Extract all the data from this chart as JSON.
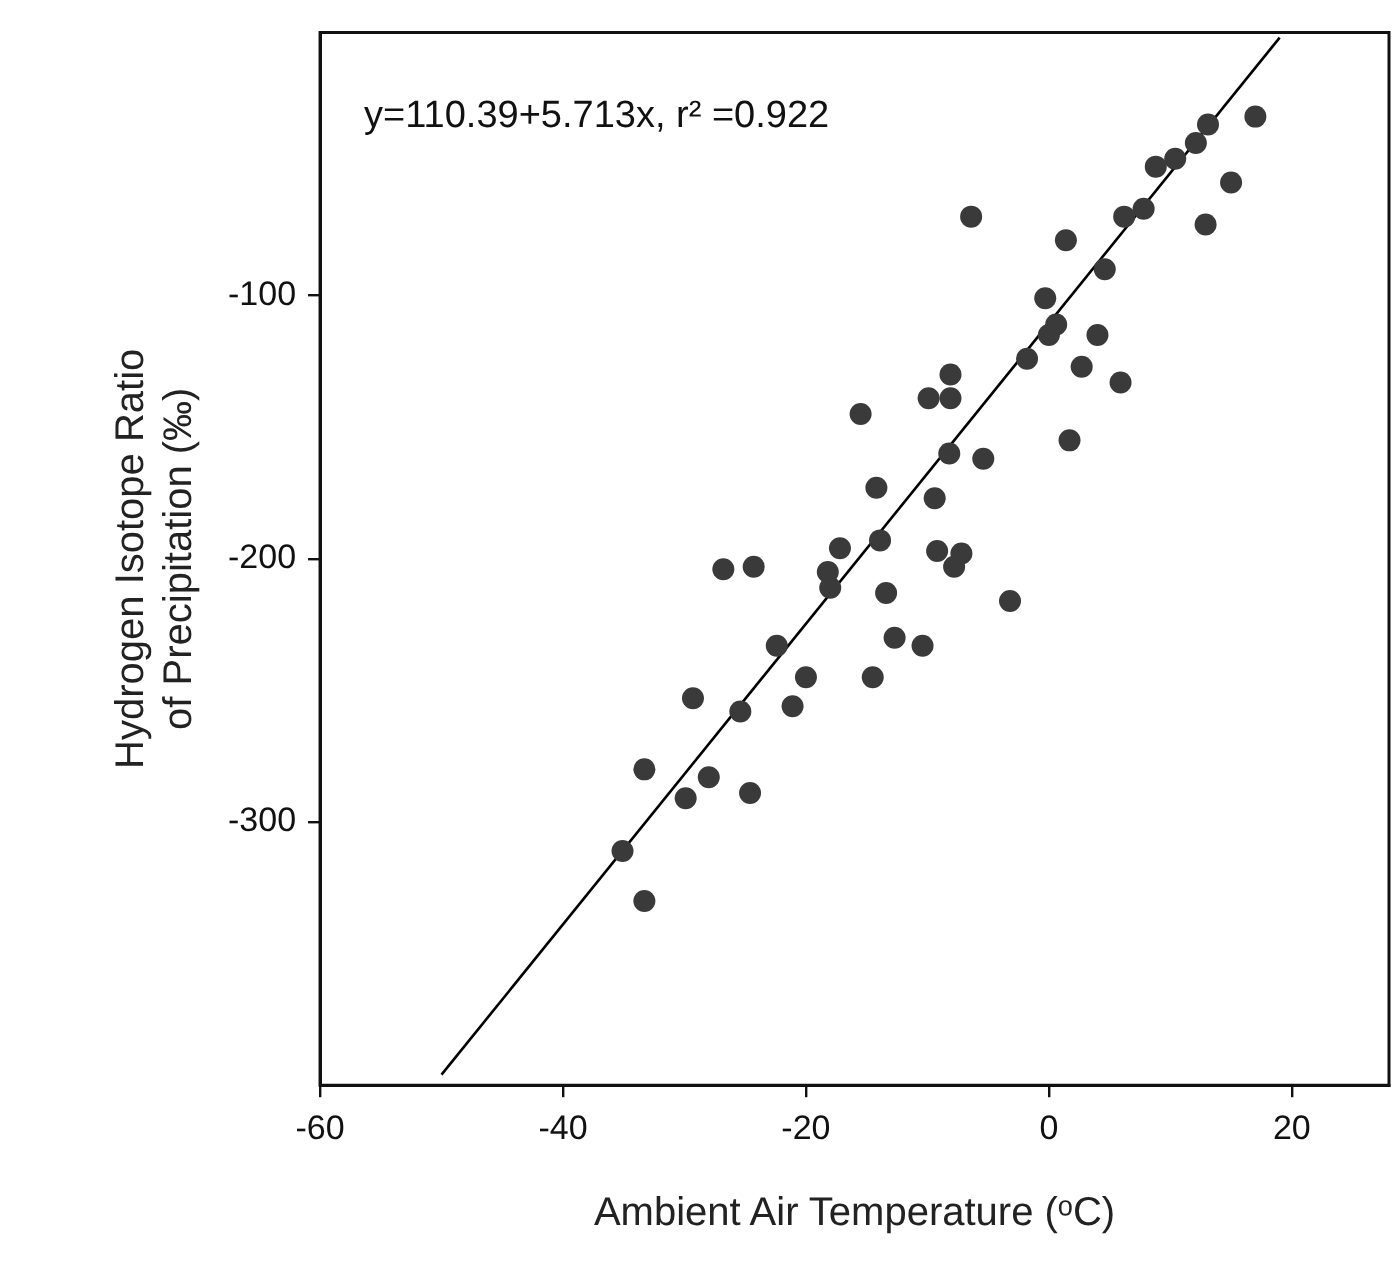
{
  "chart_data": {
    "type": "scatter",
    "xlabel": "Ambient Air Temperature (ᵒC)",
    "ylabel": "Hydrogen Isotope Ratio\nof Precipitation (‰)",
    "annotations": [
      "y=110.39+5.713x, r² =0.922"
    ],
    "xlim": [
      -60,
      28
    ],
    "ylim": [
      -400,
      0
    ],
    "xticks": [
      -60,
      -40,
      -20,
      0,
      20
    ],
    "yticks": [
      -300,
      -200,
      -100
    ],
    "grid": false,
    "legend": false,
    "marker": "circle",
    "series": [
      {
        "color": "#3a3a3a",
        "x": [
          17.0,
          13.1,
          12.1,
          10.4,
          8.8,
          15.0,
          7.8,
          6.2,
          12.9,
          -6.4,
          1.4,
          4.6,
          -0.3,
          0.6,
          0,
          4.0,
          -1.8,
          2.7,
          5.9,
          -8.1,
          -9.9,
          -8.1,
          -15.5,
          1.7,
          -8.2,
          -5.4,
          -14.2,
          -9.4,
          -17.2,
          -13.9,
          -26.8,
          -24.3,
          -18.2,
          -18.0,
          -9.2,
          -7.2,
          -7.8,
          -3.2,
          -13.4,
          -22.4,
          -12.7,
          -10.4,
          -20.0,
          -14.5,
          -29.3,
          -25.4,
          -21.1,
          -33.3,
          -28.0,
          -29.9,
          -24.6,
          -35.1,
          -33.3
        ],
        "values": [
          -32,
          -35,
          -42,
          -48,
          -51,
          -57,
          -67,
          -70,
          -73,
          -70,
          -79,
          -90,
          -101,
          -111,
          -115,
          -115,
          -124,
          -127,
          -133,
          -130,
          -139,
          -139,
          -145,
          -155,
          -160,
          -162,
          -173,
          -177,
          -196,
          -193,
          -204,
          -203,
          -205,
          -211,
          -197,
          -198,
          -203,
          -216,
          -213,
          -233,
          -230,
          -233,
          -245,
          -245,
          -253,
          -258,
          -256,
          -280,
          -283,
          -291,
          -289,
          -311,
          -330
        ]
      },
      {
        "type": "line",
        "color": "#000000",
        "marker": "none",
        "x": [
          -50,
          19
        ],
        "values": [
          -396,
          -2
        ]
      }
    ]
  }
}
